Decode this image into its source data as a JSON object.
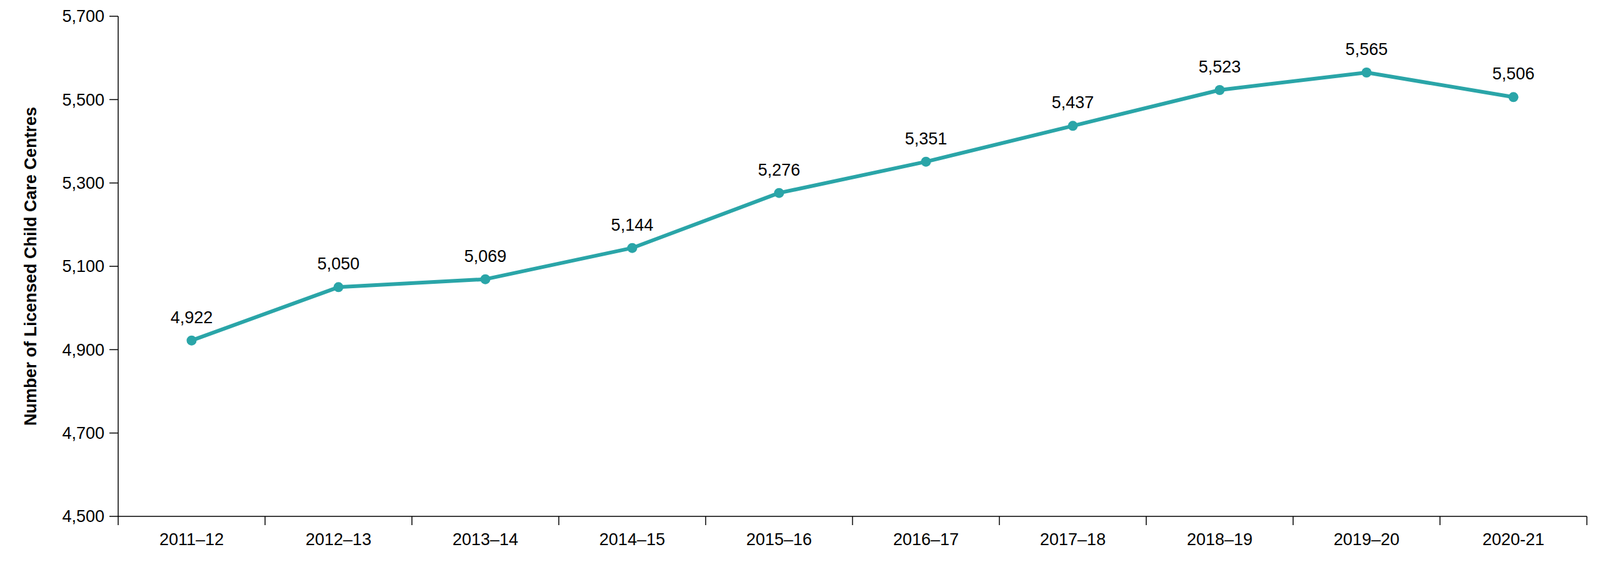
{
  "chart_data": {
    "type": "line",
    "y_label": "Number of Licensed Child Care Centres",
    "categories": [
      "2011–12",
      "2012–13",
      "2013–14",
      "2014–15",
      "2015–16",
      "2016–17",
      "2017–18",
      "2018–19",
      "2019–20",
      "2020-21"
    ],
    "values": [
      4922,
      5050,
      5069,
      5144,
      5276,
      5351,
      5437,
      5523,
      5565,
      5506
    ],
    "value_labels": [
      "4,922",
      "5,050",
      "5,069",
      "5,144",
      "5,276",
      "5,351",
      "5,437",
      "5,523",
      "5,565",
      "5,506"
    ],
    "color": "#2aa5a8",
    "marker": "circle",
    "line_style": "solid",
    "data_labels": true,
    "grid": false,
    "ylim": [
      4500,
      5700
    ],
    "yticks": [
      {
        "value": 4500,
        "label": "4,500"
      },
      {
        "value": 4700,
        "label": "4,700"
      },
      {
        "value": 4900,
        "label": "4,900"
      },
      {
        "value": 5100,
        "label": "5,100"
      },
      {
        "value": 5300,
        "label": "5,300"
      },
      {
        "value": 5500,
        "label": "5,500"
      },
      {
        "value": 5700,
        "label": "5,700"
      }
    ]
  }
}
